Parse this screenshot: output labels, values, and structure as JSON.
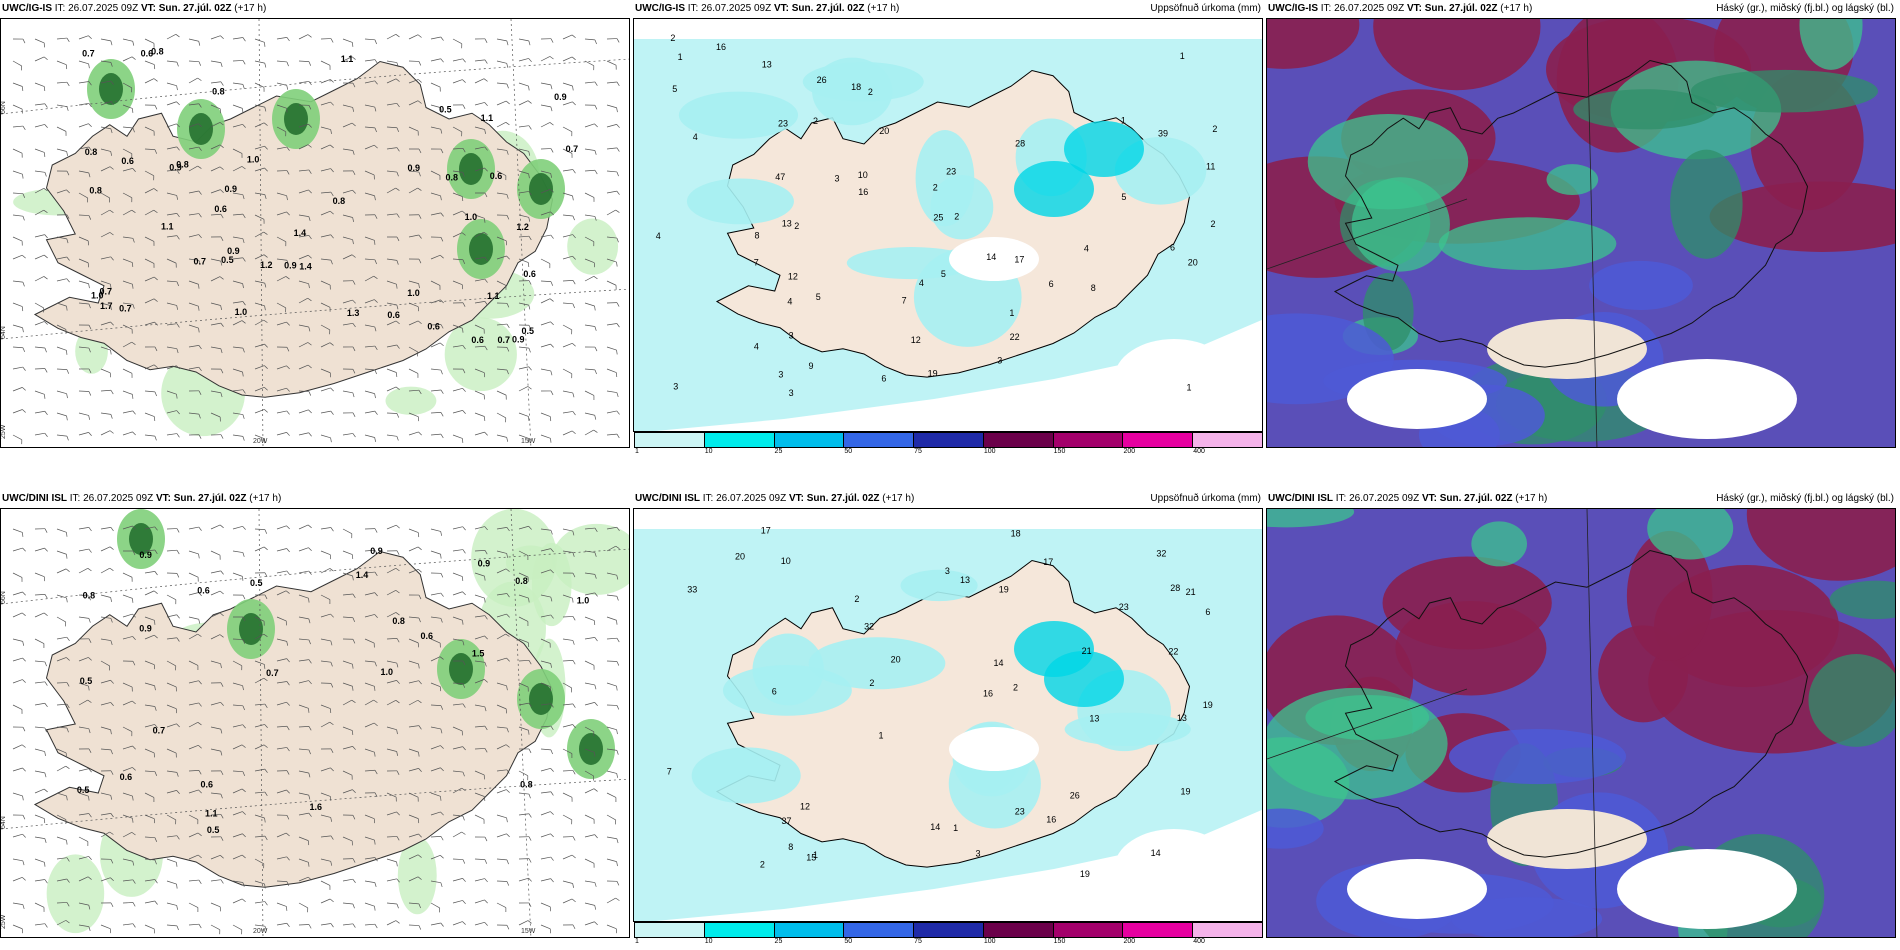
{
  "rows": [
    {
      "model_bold": "UWC/IG-IS",
      "run": " IT: 26.07.2025 09Z ",
      "vt_label": "VT:",
      "vt_value": " Sun. 27.júl. 02Z",
      "lead": " (+17 h)"
    },
    {
      "model_bold": "UWC/DINI ISL",
      "run": " IT: 26.07.2025 09Z ",
      "vt_label": "VT:",
      "vt_value": " Sun. 27.júl. 02Z",
      "lead": " (+17 h)"
    }
  ],
  "precip_title": "Uppsöfnuð úrkoma (mm)",
  "cloud_title": "Háský (gr.), miðský (fj.bl.) og lágský (bl.)",
  "coords": {
    "lat66": "66N",
    "lat64": "64N",
    "lon20": "20W",
    "lon15": "15W",
    "lon25": "25W"
  },
  "colorbar": {
    "ticks": [
      "1",
      "10",
      "25",
      "50",
      "75",
      "100",
      "150",
      "200",
      "400"
    ],
    "colors": [
      "#ccf5f5",
      "#00ebeb",
      "#00bdeb",
      "#3366e6",
      "#1f2aa8",
      "#6b004a",
      "#a3006b",
      "#e600a0",
      "#f5b3ea"
    ]
  },
  "top_left_values": [
    "1.4",
    "0.9",
    "0.6",
    "1.0",
    "0.9",
    "0.8",
    "0.9",
    "0.6",
    "0.5",
    "0.8",
    "0.6",
    "1.1",
    "0.7",
    "0.6",
    "0.9",
    "1.0",
    "0.8",
    "0.7",
    "0.9",
    "1.0",
    "0.7",
    "0.8",
    "0.6",
    "0.7",
    "1.1",
    "0.9",
    "1.3",
    "0.7",
    "1.1",
    "1.0",
    "0.9",
    "1.2",
    "0.7",
    "0.6",
    "0.5",
    "0.8",
    "0.6",
    "0.8",
    "1.1",
    "1.0",
    "0.8",
    "0.5",
    "1.2",
    "0.6",
    "1.4",
    "1.7"
  ],
  "top_mid_values": [
    "1",
    "2",
    "4",
    "1",
    "2",
    "1",
    "2",
    "5",
    "3",
    "6",
    "4",
    "2",
    "3",
    "7",
    "4",
    "3",
    "7",
    "4",
    "2",
    "10",
    "11",
    "12",
    "9",
    "13",
    "8",
    "5",
    "12",
    "8",
    "6",
    "18",
    "14",
    "26",
    "39",
    "20",
    "25",
    "47",
    "13",
    "16",
    "22",
    "28",
    "23",
    "19",
    "17",
    "20",
    "16",
    "23",
    "3",
    "5",
    "3",
    "4",
    "2",
    "2",
    "3",
    "6",
    "4",
    "5",
    "1",
    "2",
    "1"
  ],
  "bot_left_values": [
    "1.4",
    "0.9",
    "1.0",
    "0.5",
    "1.1",
    "0.8",
    "0.9",
    "0.7",
    "0.8",
    "0.6",
    "0.5",
    "0.6",
    "0.5",
    "0.6",
    "0.9",
    "1.5",
    "0.6",
    "0.5",
    "0.8",
    "0.8",
    "0.9",
    "1.0",
    "0.7",
    "1.6"
  ],
  "bot_mid_values": [
    "1",
    "2",
    "3",
    "16",
    "10",
    "14",
    "13",
    "16",
    "7",
    "15",
    "14",
    "12",
    "6",
    "19",
    "13",
    "17",
    "21",
    "32",
    "33",
    "19",
    "22",
    "18",
    "28",
    "32",
    "19",
    "37",
    "23",
    "21",
    "17",
    "14",
    "19",
    "20",
    "13",
    "26",
    "20",
    "23",
    "2",
    "2",
    "6",
    "8",
    "1",
    "3",
    "2",
    "1"
  ]
}
